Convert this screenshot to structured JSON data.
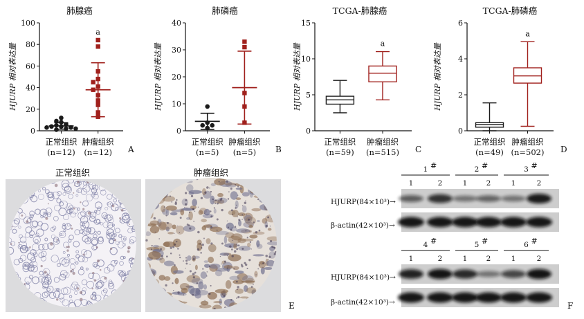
{
  "colors": {
    "normal": "#1a1a1a",
    "tumor": "#a0201c",
    "tissue_normal_bg": "#f4f2f6",
    "tissue_tumor_bg": "#e8e2dc",
    "blot_bg": "#cdcdcd",
    "band": "#101010"
  },
  "panels": {
    "A": {
      "letter": "A",
      "title": "肺腺癌",
      "ylabel": "HJURP 相对表达量",
      "xlabels": [
        [
          "正常组织",
          "(n=12)"
        ],
        [
          "肿瘤组织",
          "(n=12)"
        ]
      ],
      "sig": "a"
    },
    "B": {
      "letter": "B",
      "title": "肺磷癌",
      "ylabel": "HJURP 相对表达量",
      "xlabels": [
        [
          "正常组织",
          "(n=5)"
        ],
        [
          "肿瘤组织",
          "(n=5)"
        ]
      ]
    },
    "C": {
      "letter": "C",
      "title": "TCGA-肺腺癌",
      "ylabel": "HJURP 相对表达量",
      "xlabels": [
        [
          "正常组织",
          "(n=59)"
        ],
        [
          "肿瘤组织",
          "(n=515)"
        ]
      ],
      "sig": "a"
    },
    "D": {
      "letter": "D",
      "title": "TCGA-肺磷癌",
      "ylabel": "HJURP 相对表达量",
      "xlabels": [
        [
          "正常组织",
          "(n=49)"
        ],
        [
          "肿瘤组织",
          "(n=502)"
        ]
      ],
      "sig": "a"
    },
    "E": {
      "letter": "E",
      "normal_label": "正常组织",
      "tumor_label": "肿瘤组织"
    },
    "F": {
      "letter": "F",
      "groups_top": [
        "1#",
        "2#",
        "3#"
      ],
      "groups_bottom": [
        "4#",
        "5#",
        "6#"
      ],
      "lanes": [
        "1",
        "2"
      ],
      "row_hjurp": "HJURP(84×10³)→",
      "row_actin": "β-actin(42×10³)→",
      "hjurp_top_intensity": [
        0.45,
        0.75,
        0.3,
        0.4,
        0.3,
        0.9
      ],
      "hjurp_bottom_intensity": [
        0.85,
        0.95,
        0.8,
        0.3,
        0.6,
        0.95
      ]
    }
  },
  "chart_data": [
    {
      "panel": "A",
      "type": "scatter",
      "title": "肺腺癌",
      "xlabel": "",
      "ylabel": "HJURP 相对表达量",
      "categories": [
        "正常组织 (n=12)",
        "肿瘤组织 (n=12)"
      ],
      "ylim": [
        0,
        100
      ],
      "yticks": [
        0,
        20,
        40,
        60,
        80,
        100
      ],
      "series": [
        {
          "values": [
            12,
            9,
            8,
            6,
            5,
            4,
            4,
            3,
            3,
            2,
            2,
            1
          ],
          "mean": 4.5,
          "sd": 3.0
        },
        {
          "values": [
            84,
            78,
            55,
            48,
            45,
            41,
            38,
            33,
            28,
            24,
            17,
            13
          ],
          "mean": 38,
          "sd": 25
        }
      ]
    },
    {
      "panel": "B",
      "type": "scatter",
      "title": "肺磷癌",
      "xlabel": "",
      "ylabel": "HJURP 相对表达量",
      "categories": [
        "正常组织 (n=5)",
        "肿瘤组织 (n=5)"
      ],
      "ylim": [
        0,
        40
      ],
      "yticks": [
        0,
        10,
        20,
        30,
        40
      ],
      "series": [
        {
          "values": [
            9,
            3,
            2,
            2,
            1
          ],
          "mean": 3.5,
          "sd": 3.0
        },
        {
          "values": [
            33,
            31,
            14,
            9,
            3
          ],
          "mean": 16,
          "sd": 13.5
        }
      ]
    },
    {
      "panel": "C",
      "type": "box",
      "title": "TCGA-肺腺癌",
      "xlabel": "",
      "ylabel": "HJURP 相对表达量",
      "categories": [
        "正常组织 (n=59)",
        "肿瘤组织 (n=515)"
      ],
      "ylim": [
        0,
        15
      ],
      "yticks": [
        0,
        5,
        10,
        15
      ],
      "series": [
        {
          "min": 2.5,
          "q1": 3.7,
          "median": 4.3,
          "q3": 4.8,
          "max": 7.0
        },
        {
          "min": 4.3,
          "q1": 6.8,
          "median": 8.0,
          "q3": 9.0,
          "max": 11.0
        }
      ]
    },
    {
      "panel": "D",
      "type": "box",
      "title": "TCGA-肺磷癌",
      "xlabel": "",
      "ylabel": "HJURP 相对表达量",
      "categories": [
        "正常组织 (n=49)",
        "肿瘤组织 (n=502)"
      ],
      "ylim": [
        0,
        6
      ],
      "yticks": [
        0,
        2,
        4,
        6
      ],
      "series": [
        {
          "min": 0.0,
          "q1": 0.2,
          "median": 0.35,
          "q3": 0.45,
          "max": 1.55
        },
        {
          "min": 0.25,
          "q1": 2.65,
          "median": 3.05,
          "q3": 3.5,
          "max": 4.95
        }
      ]
    }
  ]
}
